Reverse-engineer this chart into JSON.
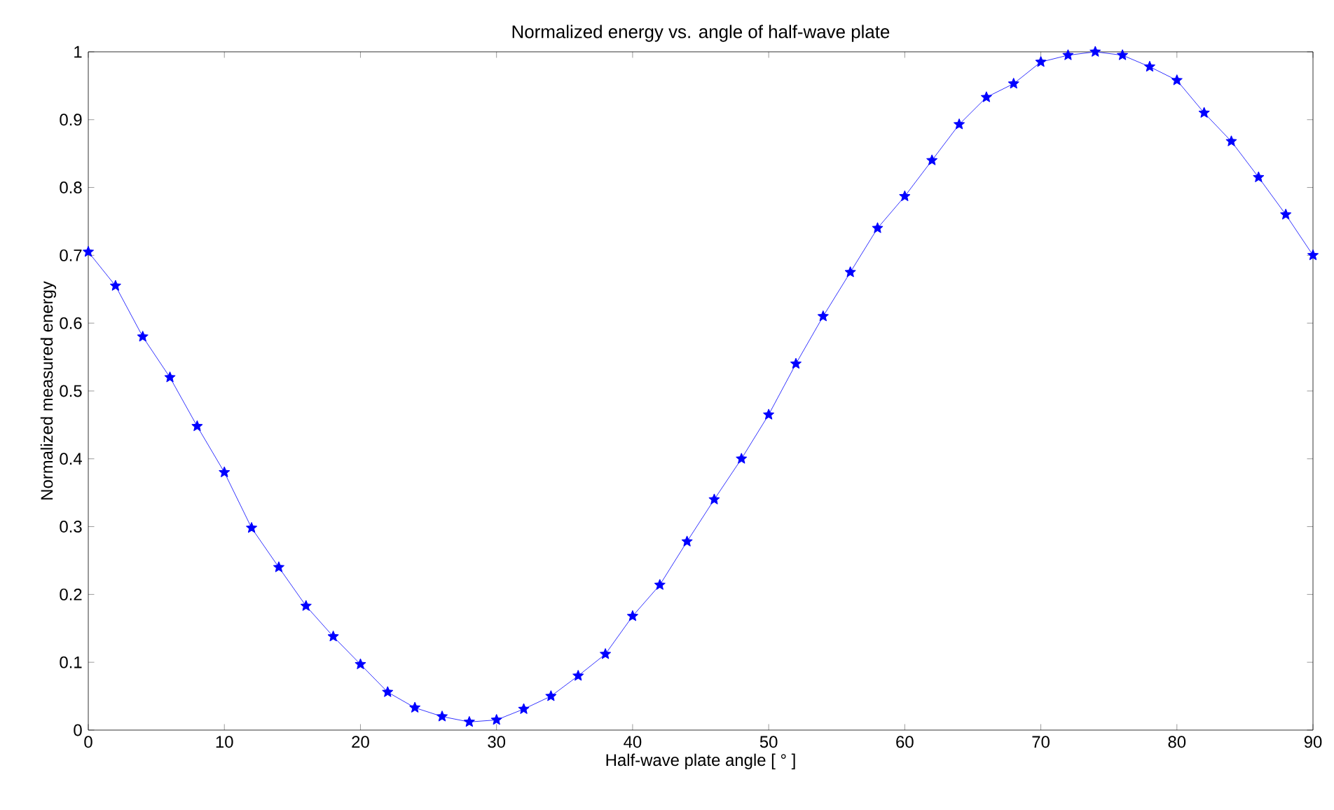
{
  "chart_data": {
    "type": "line",
    "title": "Normalized energy vs. angle of half-wave plate",
    "xlabel": "Half-wave plate angle  [ ° ]",
    "ylabel": "Normalized measured energy",
    "x": [
      0,
      2,
      4,
      6,
      8,
      10,
      12,
      14,
      16,
      18,
      20,
      22,
      24,
      26,
      28,
      30,
      32,
      34,
      36,
      38,
      40,
      42,
      44,
      46,
      48,
      50,
      52,
      54,
      56,
      58,
      60,
      62,
      64,
      66,
      68,
      70,
      72,
      74,
      76,
      78,
      80,
      82,
      84,
      86,
      88,
      90
    ],
    "series": [
      {
        "color": "#0000ff",
        "values": [
          0.705,
          0.655,
          0.58,
          0.52,
          0.448,
          0.38,
          0.298,
          0.24,
          0.183,
          0.138,
          0.097,
          0.056,
          0.033,
          0.02,
          0.012,
          0.015,
          0.031,
          0.05,
          0.08,
          0.112,
          0.168,
          0.214,
          0.278,
          0.34,
          0.4,
          0.465,
          0.54,
          0.61,
          0.675,
          0.74,
          0.787,
          0.84,
          0.893,
          0.933,
          0.953,
          0.985,
          0.995,
          1.0,
          0.995,
          0.978,
          0.958,
          0.91,
          0.868,
          0.815,
          0.76,
          0.7
        ]
      }
    ],
    "xlim": [
      0,
      90
    ],
    "ylim": [
      0,
      1
    ],
    "xticks": [
      0,
      10,
      20,
      30,
      40,
      50,
      60,
      70,
      80,
      90
    ],
    "yticks": [
      0,
      0.1,
      0.2,
      0.3,
      0.4,
      0.5,
      0.6,
      0.7,
      0.8,
      0.9,
      1
    ],
    "marker": "star",
    "line_style": "solid",
    "grid": false
  }
}
